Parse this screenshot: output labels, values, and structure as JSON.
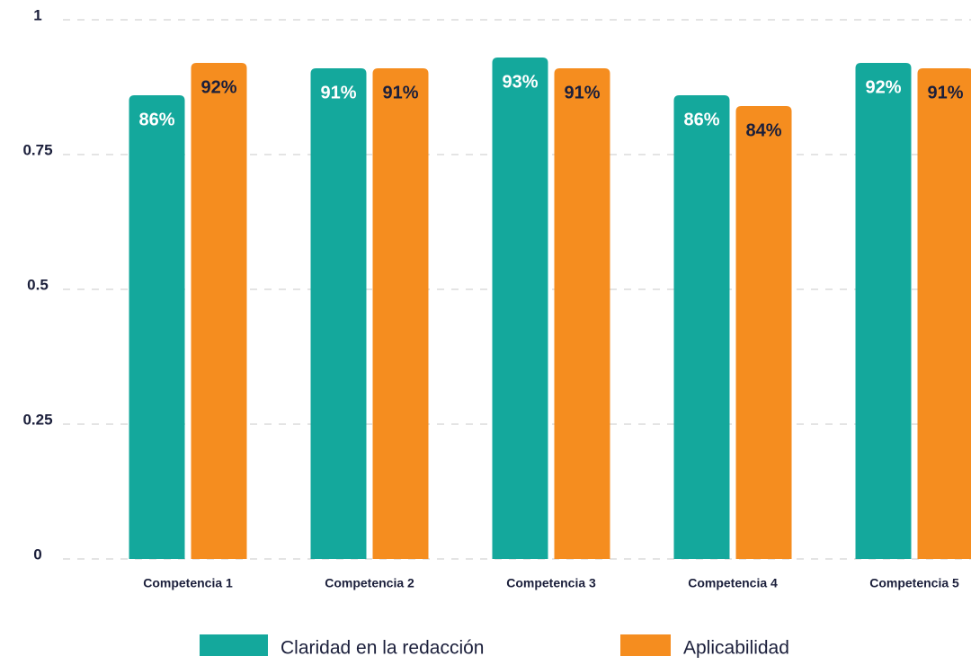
{
  "chart_data": {
    "type": "bar",
    "categories": [
      "Competencia 1",
      "Competencia 2",
      "Competencia 3",
      "Competencia 4",
      "Competencia 5"
    ],
    "series": [
      {
        "name": "Claridad en la redacción",
        "color": "#14a89c",
        "values": [
          0.86,
          0.91,
          0.93,
          0.86,
          0.92
        ],
        "value_labels": [
          "86%",
          "91%",
          "93%",
          "86%",
          "92%"
        ]
      },
      {
        "name": "Aplicabilidad",
        "color": "#f58d1f",
        "values": [
          0.92,
          0.91,
          0.91,
          0.84,
          0.91
        ],
        "value_labels": [
          "92%",
          "91%",
          "91%",
          "84%",
          "91%"
        ]
      }
    ],
    "ylim": [
      0,
      1
    ],
    "yticks": [
      0,
      0.25,
      0.5,
      0.75,
      1
    ],
    "grid": true,
    "legend": "bottom"
  }
}
